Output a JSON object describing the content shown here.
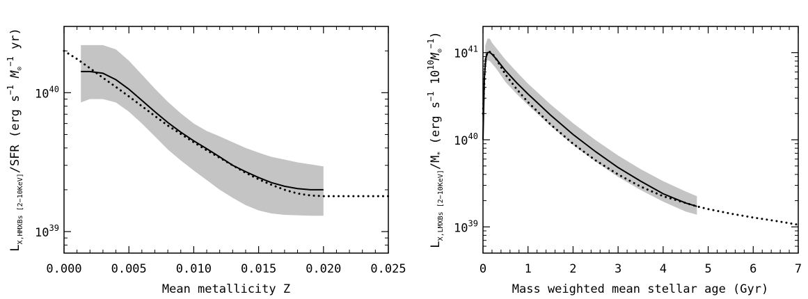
{
  "chart_data": [
    {
      "type": "line",
      "panel": "left",
      "xlabel": "Mean metallicity Z",
      "ylabel_parts": {
        "main": "L",
        "sub": "X,HMXBs [2−10KeV]",
        "rest": "/SFR (erg s",
        "exp1": "−1",
        "mid": " M",
        "sun": "⊙",
        "exp2": "−1",
        "tail": " yr)"
      },
      "xlim": [
        0.0,
        0.025
      ],
      "ylim": [
        7e+38,
        3e+40
      ],
      "yscale": "log",
      "x_ticks": [
        "0.000",
        "0.005",
        "0.010",
        "0.015",
        "0.020",
        "0.025"
      ],
      "x_tick_values": [
        0.0,
        0.005,
        0.01,
        0.015,
        0.02,
        0.025
      ],
      "y_ticks": [
        {
          "value": 1e+39,
          "base": "10",
          "exp": "39"
        },
        {
          "value": 1e+40,
          "base": "10",
          "exp": "40"
        }
      ],
      "series": [
        {
          "style": "solid",
          "x": [
            0.0013,
            0.002,
            0.003,
            0.004,
            0.005,
            0.006,
            0.007,
            0.008,
            0.009,
            0.01,
            0.011,
            0.012,
            0.013,
            0.014,
            0.015,
            0.016,
            0.017,
            0.018,
            0.019,
            0.02
          ],
          "y": [
            1.42e+40,
            1.42e+40,
            1.38e+40,
            1.24e+40,
            1.06e+40,
            8.8e+39,
            7.3e+39,
            6.1e+39,
            5.2e+39,
            4.5e+39,
            3.95e+39,
            3.45e+39,
            3e+39,
            2.7e+39,
            2.45e+39,
            2.25e+39,
            2.12e+39,
            2.04e+39,
            2e+39,
            2e+39
          ]
        },
        {
          "style": "dotted",
          "x": [
            0.0,
            0.001,
            0.002,
            0.003,
            0.004,
            0.005,
            0.006,
            0.007,
            0.008,
            0.009,
            0.01,
            0.011,
            0.012,
            0.013,
            0.014,
            0.015,
            0.016,
            0.017,
            0.018,
            0.019,
            0.02,
            0.0225,
            0.025
          ],
          "y": [
            2e+40,
            1.75e+40,
            1.5e+40,
            1.28e+40,
            1.1e+40,
            9.4e+39,
            8e+39,
            6.8e+39,
            5.8e+39,
            5.05e+39,
            4.4e+39,
            3.85e+39,
            3.4e+39,
            3e+39,
            2.65e+39,
            2.38e+39,
            2.17e+39,
            2e+39,
            1.88e+39,
            1.82e+39,
            1.8e+39,
            1.8e+39,
            1.8e+39
          ]
        }
      ],
      "band": {
        "x": [
          0.0013,
          0.002,
          0.003,
          0.004,
          0.005,
          0.006,
          0.007,
          0.008,
          0.009,
          0.01,
          0.011,
          0.012,
          0.013,
          0.014,
          0.015,
          0.016,
          0.017,
          0.018,
          0.019,
          0.02
        ],
        "upper": [
          2.2e+40,
          2.2e+40,
          2.2e+40,
          2.05e+40,
          1.7e+40,
          1.35e+40,
          1.07e+40,
          8.6e+39,
          7.1e+39,
          6e+39,
          5.3e+39,
          4.85e+39,
          4.4e+39,
          4e+39,
          3.7e+39,
          3.45e+39,
          3.3e+39,
          3.15e+39,
          3.05e+39,
          2.95e+39
        ],
        "lower": [
          8.5e+39,
          9e+39,
          9e+39,
          8.5e+39,
          7.3e+39,
          6e+39,
          4.85e+39,
          3.9e+39,
          3.25e+39,
          2.75e+39,
          2.35e+39,
          2e+39,
          1.75e+39,
          1.55e+39,
          1.42e+39,
          1.35e+39,
          1.32e+39,
          1.31e+39,
          1.3e+39,
          1.3e+39
        ]
      }
    },
    {
      "type": "line",
      "panel": "right",
      "xlabel": "Mass weighted mean stellar age (Gyr)",
      "ylabel_parts": {
        "main": "L",
        "sub": "X,LMXBs [2−10KeV]",
        "rest": "/M",
        "star": "*",
        "mid": " (erg s",
        "exp1": "−1",
        "mid2": " 10",
        "exp2": "10",
        "tail": "M",
        "sun": "⊙",
        "exp3": "−1",
        "close": ")"
      },
      "xlim": [
        0,
        7
      ],
      "ylim": [
        5e+38,
        2e+41
      ],
      "yscale": "log",
      "x_ticks": [
        "0",
        "1",
        "2",
        "3",
        "4",
        "5",
        "6",
        "7"
      ],
      "x_tick_values": [
        0,
        1,
        2,
        3,
        4,
        5,
        6,
        7
      ],
      "y_ticks": [
        {
          "value": 1e+39,
          "base": "10",
          "exp": "39"
        },
        {
          "value": 1e+40,
          "base": "10",
          "exp": "40"
        },
        {
          "value": 1e+41,
          "base": "10",
          "exp": "41"
        }
      ],
      "series": [
        {
          "style": "solid",
          "x": [
            0.0,
            0.03,
            0.06,
            0.1,
            0.15,
            0.2,
            0.3,
            0.5,
            0.75,
            1.0,
            1.5,
            2.0,
            2.5,
            3.0,
            3.5,
            4.0,
            4.5,
            4.75
          ],
          "y": [
            1e+40,
            5e+40,
            8.5e+40,
            1e+41,
            1.01e+41,
            9.6e+40,
            8.4e+40,
            6.2e+40,
            4.5e+40,
            3.35e+40,
            1.92e+40,
            1.15e+40,
            7.3e+39,
            4.8e+39,
            3.35e+39,
            2.4e+39,
            1.88e+39,
            1.72e+39
          ]
        },
        {
          "style": "dotted",
          "x": [
            0.0,
            0.05,
            0.1,
            0.15,
            0.25,
            0.5,
            0.75,
            1.0,
            1.5,
            2.0,
            2.5,
            3.0,
            3.5,
            4.0,
            4.75,
            5.0,
            5.5,
            6.0,
            6.5,
            7.0
          ],
          "y": [
            2e+40,
            8e+40,
            1.02e+41,
            1.02e+41,
            9.2e+40,
            5.6e+40,
            3.8e+40,
            2.7e+40,
            1.5e+40,
            9e+39,
            5.8e+39,
            4e+39,
            2.9e+39,
            2.25e+39,
            1.72e+39,
            1.6e+39,
            1.42e+39,
            1.28e+39,
            1.17e+39,
            1.06e+39
          ]
        }
      ],
      "band": {
        "x": [
          0.05,
          0.1,
          0.15,
          0.2,
          0.3,
          0.5,
          0.75,
          1.0,
          1.5,
          2.0,
          2.5,
          3.0,
          3.5,
          4.0,
          4.5,
          4.75
        ],
        "upper": [
          1.2e+41,
          1.45e+41,
          1.45e+41,
          1.3e+41,
          1.12e+41,
          8.3e+40,
          6e+40,
          4.4e+40,
          2.55e+40,
          1.55e+40,
          9.9e+39,
          6.6e+39,
          4.6e+39,
          3.35e+39,
          2.55e+39,
          2.25e+39
        ],
        "lower": [
          6.5e+40,
          8.2e+40,
          8e+40,
          7.5e+40,
          6.5e+40,
          4.6e+40,
          3.35e+40,
          2.5e+40,
          1.44e+40,
          8.7e+39,
          5.6e+39,
          3.75e+39,
          2.65e+39,
          1.95e+39,
          1.5e+39,
          1.38e+39
        ]
      }
    }
  ]
}
